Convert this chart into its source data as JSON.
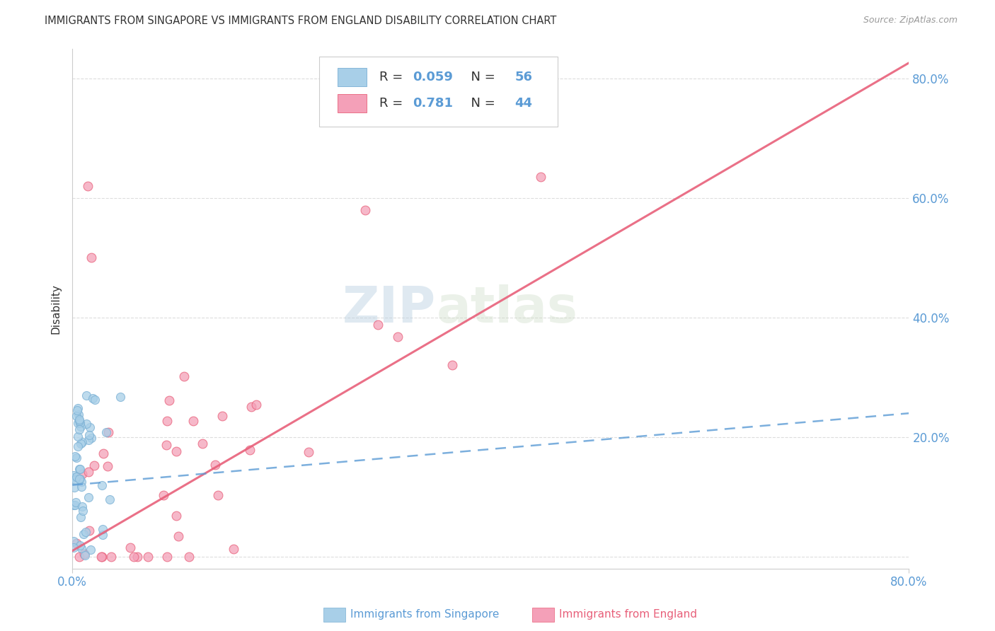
{
  "title": "IMMIGRANTS FROM SINGAPORE VS IMMIGRANTS FROM ENGLAND DISABILITY CORRELATION CHART",
  "source": "Source: ZipAtlas.com",
  "ylabel": "Disability",
  "xlim": [
    0,
    0.8
  ],
  "ylim": [
    -0.02,
    0.85
  ],
  "watermark_zip": "ZIP",
  "watermark_atlas": "atlas",
  "legend_r1": "0.059",
  "legend_n1": "56",
  "legend_r2": "0.781",
  "legend_n2": "44",
  "singapore_color": "#a8cfe8",
  "singapore_edge_color": "#7ab0d4",
  "england_color": "#f4a0b8",
  "england_edge_color": "#e8607a",
  "singapore_line_color": "#5b9bd5",
  "england_line_color": "#e8607a",
  "background_color": "#ffffff",
  "grid_color": "#dddddd",
  "tick_color": "#5b9bd5",
  "text_color": "#333333",
  "source_color": "#999999"
}
